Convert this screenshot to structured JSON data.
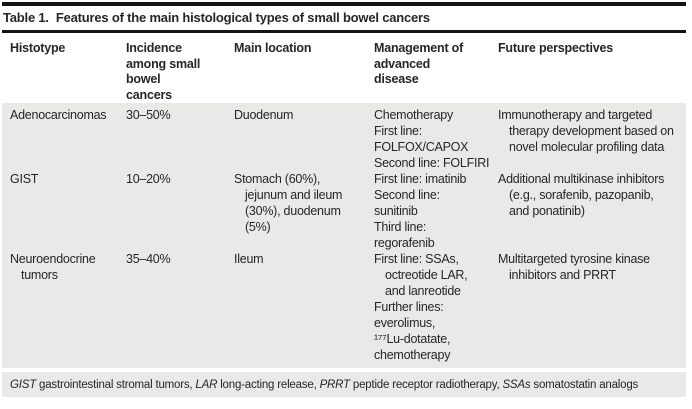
{
  "title": {
    "prefix": "Table 1.",
    "text": "Features of the main histological types of small bowel cancers"
  },
  "colors": {
    "rule": "#141414",
    "body_band_bg": "#e9e9e7",
    "text": "#262626",
    "page_bg": "#ffffff"
  },
  "table": {
    "columns": [
      {
        "label": "Histotype",
        "lines": [
          "Histotype"
        ]
      },
      {
        "label": "Incidence among small bowel cancers",
        "lines": [
          "Incidence",
          "among small",
          "bowel",
          "cancers"
        ]
      },
      {
        "label": "Main location",
        "lines": [
          "Main location"
        ]
      },
      {
        "label": "Management of advanced disease",
        "lines": [
          "Management of",
          "advanced",
          "disease"
        ]
      },
      {
        "label": "Future perspectives",
        "lines": [
          "Future perspectives"
        ]
      }
    ],
    "rows": [
      {
        "cells": [
          [
            {
              "text": "Adenocarcinomas",
              "indent": false
            }
          ],
          [
            {
              "text": "30–50%",
              "indent": false
            }
          ],
          [
            {
              "text": "Duodenum",
              "indent": false
            }
          ],
          [
            {
              "text": "Chemotherapy",
              "indent": false
            },
            {
              "text": "First line:",
              "indent": false
            },
            {
              "text": "FOLFOX/CAPOX",
              "indent": false
            },
            {
              "text": "Second line: FOLFIRI",
              "indent": false
            }
          ],
          [
            {
              "text": "Immunotherapy and targeted",
              "indent": false
            },
            {
              "text": "therapy development based on",
              "indent": true
            },
            {
              "text": "novel molecular profiling data",
              "indent": true
            }
          ]
        ]
      },
      {
        "cells": [
          [
            {
              "text": "GIST",
              "indent": false
            }
          ],
          [
            {
              "text": "10–20%",
              "indent": false
            }
          ],
          [
            {
              "text": "Stomach (60%),",
              "indent": false
            },
            {
              "text": "jejunum and ileum",
              "indent": true
            },
            {
              "text": "(30%), duodenum",
              "indent": true
            },
            {
              "text": "(5%)",
              "indent": true
            }
          ],
          [
            {
              "text": "First line: imatinib",
              "indent": false
            },
            {
              "text": "Second line:",
              "indent": false
            },
            {
              "text": "sunitinib",
              "indent": false
            },
            {
              "text": "Third line:",
              "indent": false
            },
            {
              "text": "regorafenib",
              "indent": false
            }
          ],
          [
            {
              "text": "Additional multikinase inhibitors",
              "indent": false
            },
            {
              "text": "(e.g., sorafenib, pazopanib,",
              "indent": true
            },
            {
              "text": "and ponatinib)",
              "indent": true
            }
          ]
        ]
      },
      {
        "cells": [
          [
            {
              "text": "Neuroendocrine",
              "indent": false
            },
            {
              "text": "tumors",
              "indent": true
            }
          ],
          [
            {
              "text": "35–40%",
              "indent": false
            }
          ],
          [
            {
              "text": "Ileum",
              "indent": false
            }
          ],
          [
            {
              "text": "First line: SSAs,",
              "indent": false
            },
            {
              "text": "octreotide LAR,",
              "indent": true
            },
            {
              "text": "and lanreotide",
              "indent": true
            },
            {
              "text": "Further lines:",
              "indent": false
            },
            {
              "text": "everolimus,",
              "indent": false
            },
            {
              "text": "¹⁷⁷Lu-dotatate,",
              "indent": false
            },
            {
              "text": "chemotherapy",
              "indent": false
            }
          ],
          [
            {
              "text": "Multitargeted tyrosine kinase",
              "indent": false
            },
            {
              "text": "inhibitors and PRRT",
              "indent": true
            }
          ]
        ]
      }
    ]
  },
  "footnote": {
    "segments": [
      {
        "text": "GIST",
        "italic": true
      },
      {
        "text": " gastrointestinal stromal tumors, ",
        "italic": false
      },
      {
        "text": "LAR",
        "italic": true
      },
      {
        "text": " long-acting release, ",
        "italic": false
      },
      {
        "text": "PRRT",
        "italic": true
      },
      {
        "text": " peptide receptor radiotherapy, ",
        "italic": false
      },
      {
        "text": "SSAs",
        "italic": true
      },
      {
        "text": " somatostatin analogs",
        "italic": false
      }
    ]
  }
}
